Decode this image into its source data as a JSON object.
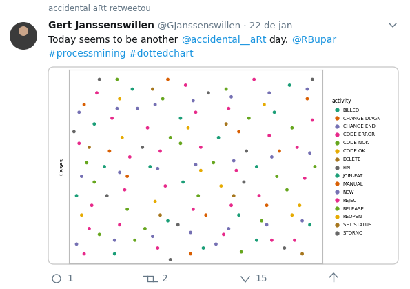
{
  "retweet_note": "accidental aRt retweetou",
  "author": "Gert Janssenswillen",
  "meta": "@GJanssenswillen · 22 de jan",
  "text_lines": [
    [
      {
        "text": "Today seems to be another",
        "link": false
      },
      {
        "text": " @accidental__aRt",
        "link": true
      },
      {
        "text": " day.",
        "link": false
      },
      {
        "text": " @RBupar",
        "link": true
      }
    ],
    [
      {
        "text": "#processmining #dottedchart",
        "link": true
      }
    ]
  ],
  "chart_data": {
    "type": "scatter",
    "y_label": "Cases",
    "legend_title": "activity",
    "legend": "right",
    "tick_labels": false,
    "xlim": [
      0,
      100
    ],
    "ylim": [
      0,
      100
    ],
    "marker": "o",
    "series": [
      {
        "name": "BILLED",
        "color": "#1B9E77",
        "x": [
          3,
          10,
          18,
          25,
          32,
          39,
          45,
          53,
          59,
          67,
          74,
          81,
          87,
          95
        ],
        "y": [
          35,
          72,
          5,
          90,
          50,
          22,
          42,
          8,
          65,
          25,
          50,
          78,
          92,
          20
        ]
      },
      {
        "name": "CHANGE DIAGN",
        "color": "#D95F02",
        "x": [
          6,
          23,
          39,
          54,
          67,
          83,
          94
        ],
        "y": [
          82,
          45,
          95,
          25,
          68,
          58,
          85
        ]
      },
      {
        "name": "CHANGE END",
        "color": "#7570B3",
        "x": [
          27,
          58
        ],
        "y": [
          80,
          10
        ]
      },
      {
        "name": "CODE ERROR",
        "color": "#E7298A",
        "x": [
          8,
          22,
          36,
          50,
          64,
          80,
          90
        ],
        "y": [
          18,
          38,
          58,
          78,
          30,
          12,
          60
        ]
      },
      {
        "name": "CODE NOK",
        "color": "#66A61E",
        "x": [
          10,
          26,
          40,
          57,
          71,
          86
        ],
        "y": [
          42,
          12,
          65,
          52,
          75,
          38
        ]
      },
      {
        "name": "CODE OK",
        "color": "#E6AB02",
        "x": [
          5,
          21,
          34,
          47,
          60,
          77,
          91
        ],
        "y": [
          25,
          65,
          32,
          70,
          40,
          82,
          30
        ]
      },
      {
        "name": "DELETE",
        "color": "#A6761D",
        "x": [
          33,
          65
        ],
        "y": [
          90,
          35
        ]
      },
      {
        "name": "FIN",
        "color": "#666666",
        "x": [
          2,
          15,
          29,
          43,
          55,
          69,
          85,
          96
        ],
        "y": [
          68,
          35,
          60,
          20,
          88,
          42,
          8,
          95
        ]
      },
      {
        "name": "JOIN-PAT",
        "color": "#1B9E77",
        "x": [
          14,
          44,
          74
        ],
        "y": [
          50,
          75,
          12
        ]
      },
      {
        "name": "MANUAL",
        "color": "#D95F02",
        "x": [
          16,
          48,
          78
        ],
        "y": [
          58,
          5,
          30
        ]
      },
      {
        "name": "NEW",
        "color": "#7570B3",
        "x": [
          3,
          18,
          33,
          48,
          63,
          78,
          92,
          5,
          20,
          35,
          50,
          65,
          80,
          95,
          4,
          19,
          34,
          49,
          64,
          79,
          94
        ],
        "y": [
          10,
          12,
          14,
          16,
          18,
          20,
          22,
          45,
          47,
          49,
          51,
          53,
          55,
          57,
          78,
          80,
          82,
          84,
          86,
          88,
          90
        ]
      },
      {
        "name": "REJECT",
        "color": "#E7298A",
        "x": [
          6,
          9,
          4,
          11,
          20,
          24,
          17,
          35,
          38,
          31,
          49,
          52,
          46,
          61,
          66,
          63,
          75,
          79,
          73,
          89,
          93,
          96
        ],
        "y": [
          5,
          30,
          62,
          88,
          20,
          55,
          75,
          8,
          40,
          70,
          28,
          60,
          92,
          15,
          48,
          80,
          35,
          66,
          95,
          12,
          44,
          74
        ]
      },
      {
        "name": "RELEASE",
        "color": "#66A61E",
        "x": [
          7,
          12,
          23,
          19,
          37,
          30,
          51,
          44,
          62,
          68,
          76,
          82,
          88,
          97
        ],
        "y": [
          52,
          15,
          28,
          95,
          85,
          18,
          35,
          62,
          90,
          6,
          22,
          45,
          70,
          50
        ]
      },
      {
        "name": "REOPEN",
        "color": "#E6AB02",
        "x": [
          20,
          52,
          88
        ],
        "y": [
          85,
          48,
          25
        ]
      },
      {
        "name": "SET STATUS",
        "color": "#A6761D",
        "x": [
          8,
          36,
          62,
          92
        ],
        "y": [
          60,
          25,
          72,
          5
        ]
      },
      {
        "name": "STORNO",
        "color": "#666666",
        "x": [
          12,
          40,
          70
        ],
        "y": [
          95,
          2,
          58
        ]
      }
    ]
  },
  "counts": {
    "replies": 1,
    "retweets": 2,
    "likes": 15
  }
}
